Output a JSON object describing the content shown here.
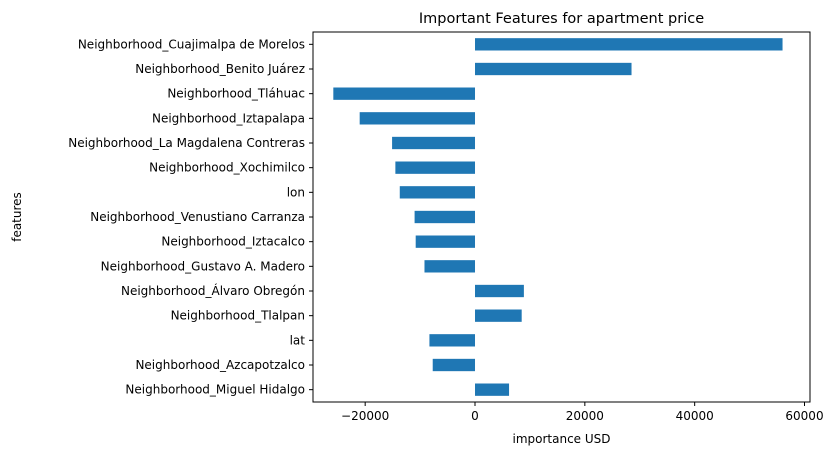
{
  "chart_data": {
    "type": "bar",
    "orientation": "horizontal",
    "title": "Important Features for apartment price",
    "xlabel": "importance USD",
    "ylabel": "features",
    "xlim": [
      -29500,
      61000
    ],
    "xticks": [
      -20000,
      0,
      20000,
      40000,
      60000
    ],
    "xtick_labels": [
      "−20000",
      "0",
      "20000",
      "40000",
      "60000"
    ],
    "grid": false,
    "bar_color": "#1f77b4",
    "categories": [
      "Neighborhood_Cuajimalpa de Morelos",
      "Neighborhood_Benito Juárez",
      "Neighborhood_Tláhuac",
      "Neighborhood_Iztapalapa",
      "Neighborhood_La Magdalena Contreras",
      "Neighborhood_Xochimilco",
      "lon",
      "Neighborhood_Venustiano Carranza",
      "Neighborhood_Iztacalco",
      "Neighborhood_Gustavo A. Madero",
      "Neighborhood_Álvaro Obregón",
      "Neighborhood_Tlalpan",
      "lat",
      "Neighborhood_Azcapotzalco",
      "Neighborhood_Miguel Hidalgo"
    ],
    "values": [
      56000,
      28500,
      -25800,
      -21000,
      -15100,
      -14500,
      -13700,
      -11000,
      -10800,
      -9200,
      8900,
      8500,
      -8300,
      -7700,
      6200
    ]
  }
}
